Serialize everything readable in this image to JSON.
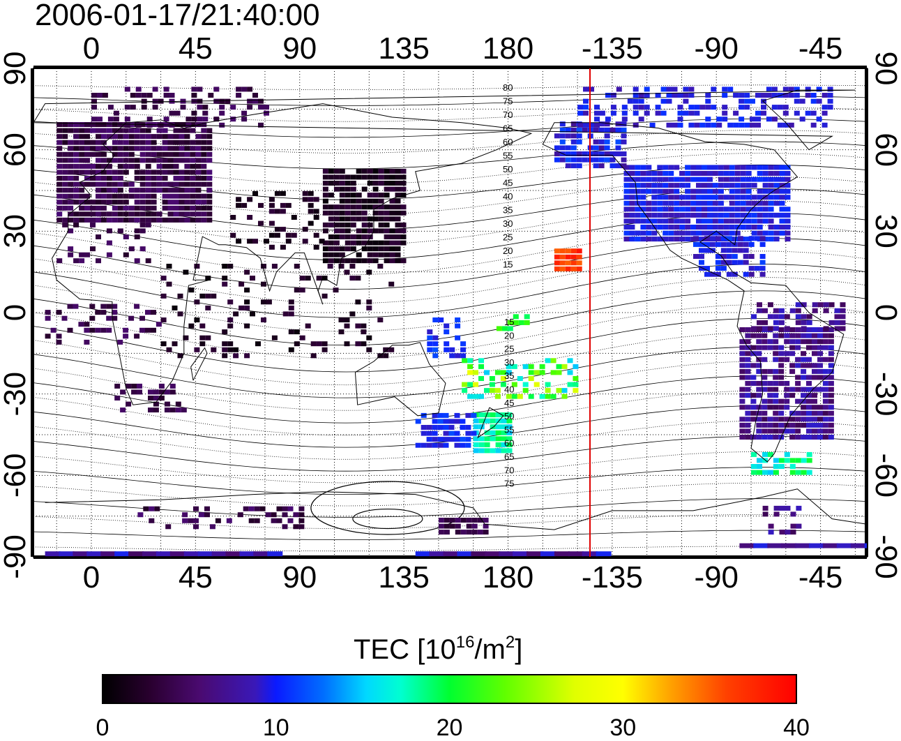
{
  "title": "2006-01-17/21:40:00",
  "map": {
    "projection": "equirectangular",
    "lon_range_shown": [
      -25,
      335
    ],
    "lat_range": [
      -90,
      90
    ],
    "top_axis_tick_labels": [
      "0",
      "45",
      "90",
      "135",
      "180",
      "-135",
      "-90",
      "-45"
    ],
    "bottom_axis_tick_labels": [
      "0",
      "45",
      "90",
      "135",
      "180",
      "-135",
      "-90",
      "-45"
    ],
    "left_axis_tick_labels": [
      "90",
      "60",
      "30",
      "0",
      "-30",
      "-60",
      "-90"
    ],
    "right_axis_tick_labels": [
      "90",
      "60",
      "30",
      "0",
      "-30",
      "-60",
      "-90"
    ],
    "grid": "dotted, 15 degree spacing",
    "terminator_line_lon": -145,
    "terminator_color": "#e00000",
    "contour_labels_north": [
      "80",
      "75",
      "70",
      "65",
      "60",
      "55",
      "50",
      "45",
      "40",
      "35",
      "30",
      "25",
      "20",
      "15"
    ],
    "contour_labels_south": [
      "15",
      "20",
      "25",
      "30",
      "35",
      "40",
      "45",
      "50",
      "55",
      "60",
      "65",
      "70",
      "75"
    ],
    "tec_regions": [
      {
        "name": "europe",
        "level": 4
      },
      {
        "name": "east-asia",
        "level": 2
      },
      {
        "name": "north-america",
        "level": 10
      },
      {
        "name": "pacific-red",
        "level": 38
      },
      {
        "name": "south-pacific",
        "level": 24
      },
      {
        "name": "new-zealand",
        "level": 20
      },
      {
        "name": "australia",
        "level": 11
      },
      {
        "name": "south-america",
        "level": 7
      },
      {
        "name": "antarctica",
        "level": 8
      }
    ]
  },
  "colorbar": {
    "label_main": "TEC  [10",
    "label_sup": "16",
    "label_mid": "/m",
    "label_sup2": "2",
    "label_end": "]",
    "ticks": [
      "0",
      "10",
      "20",
      "30",
      "40"
    ],
    "min": 0,
    "max": 40,
    "colors": [
      "#000000",
      "#2a0030",
      "#4a0a70",
      "#3a18b8",
      "#0a2aff",
      "#0070ff",
      "#00c8ff",
      "#00ffd0",
      "#00ff40",
      "#40ff00",
      "#c0ff00",
      "#ffff00",
      "#ffb000",
      "#ff6000",
      "#ff0000"
    ]
  }
}
